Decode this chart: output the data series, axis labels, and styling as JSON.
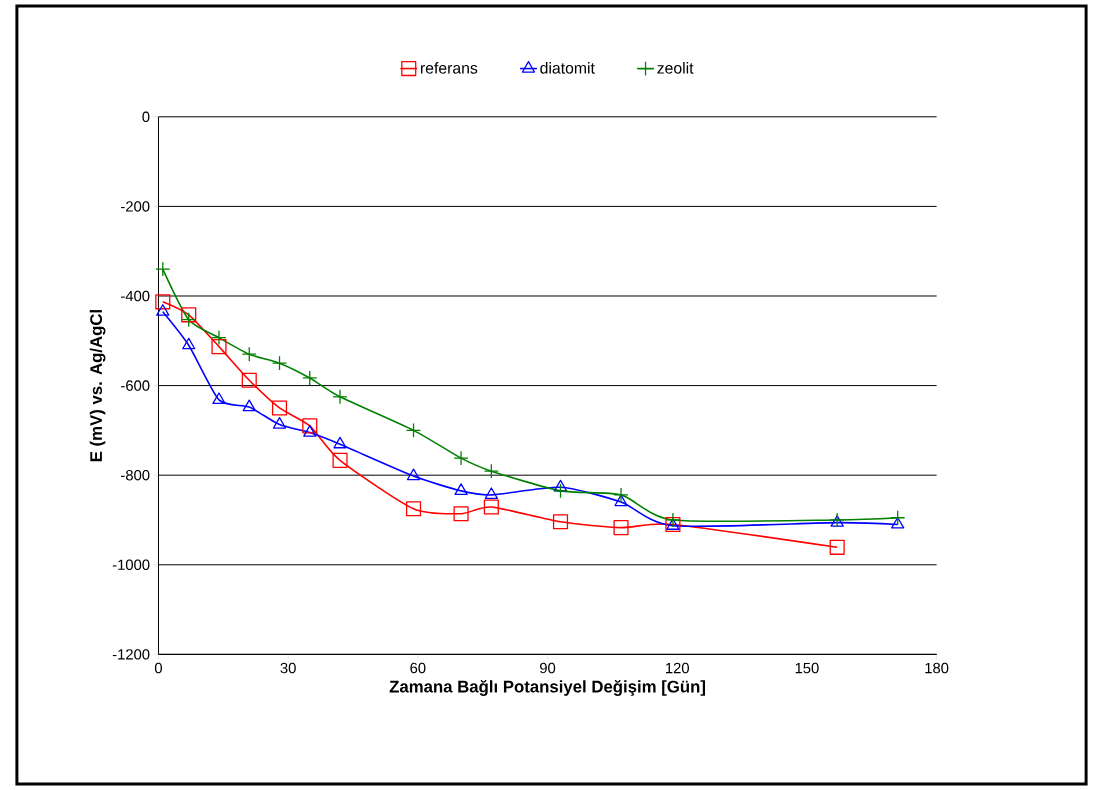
{
  "chart_data": {
    "type": "line",
    "xlabel": "Zamana Bağlı Potansiyel Değişim [Gün]",
    "ylabel": "E (mV) vs. Ag/AgCl",
    "x": [
      1,
      7,
      14,
      21,
      28,
      35,
      42,
      59,
      70,
      77,
      93,
      107,
      119,
      157,
      171
    ],
    "series": [
      {
        "name": "referans",
        "color": "#ff0000",
        "marker": "square",
        "values": [
          -413,
          -442,
          -513,
          -588,
          -650,
          -690,
          -767,
          -875,
          -886,
          -871,
          -904,
          -917,
          -910,
          -961,
          null
        ]
      },
      {
        "name": "diatomit",
        "color": "#0000ff",
        "marker": "triangle",
        "values": [
          -435,
          -510,
          -632,
          -648,
          -687,
          -705,
          -731,
          -802,
          -835,
          -844,
          -827,
          -860,
          -913,
          -906,
          -910
        ]
      },
      {
        "name": "zeolit",
        "color": "#008000",
        "marker": "cross",
        "values": [
          -340,
          -453,
          -493,
          -530,
          -550,
          -583,
          -625,
          -700,
          -762,
          -791,
          -835,
          -844,
          -900,
          -900,
          -895
        ]
      }
    ],
    "xlim": [
      0,
      180
    ],
    "xticks": [
      0,
      30,
      60,
      90,
      120,
      150,
      180
    ],
    "ylim": [
      -1200,
      0
    ],
    "yticks": [
      -1200,
      -1000,
      -800,
      -600,
      -400,
      -200,
      0
    ],
    "grid": "y",
    "legend": "top",
    "line_style": "solid"
  }
}
